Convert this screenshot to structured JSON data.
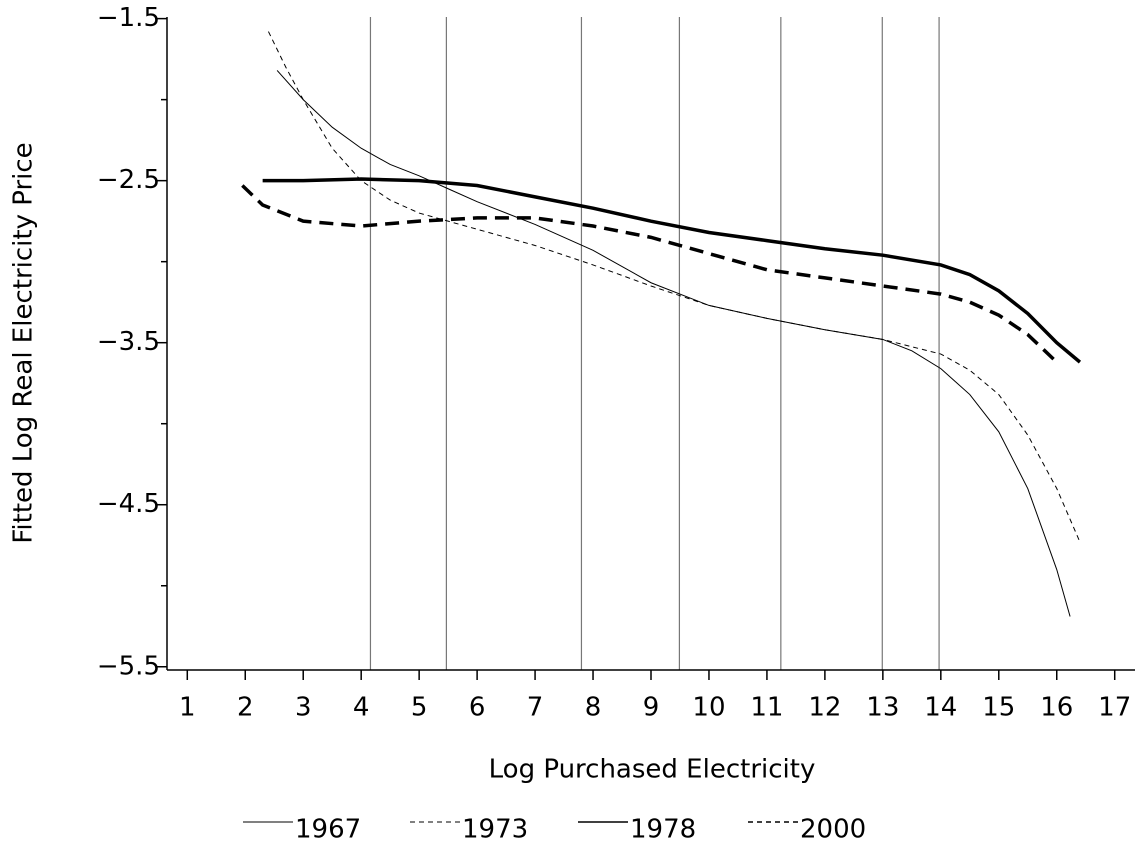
{
  "chart_data": {
    "type": "line",
    "x_label": "Log Purchased Electricity",
    "y_label": "Fitted Log Real Electricity Price",
    "xlim": [
      0.65,
      17.35
    ],
    "ylim": [
      -5.52,
      -1.49
    ],
    "xticks": [
      1,
      2,
      3,
      4,
      5,
      6,
      7,
      8,
      9,
      10,
      11,
      12,
      13,
      14,
      15,
      16,
      17
    ],
    "yticks": [
      {
        "value": -1.5,
        "label": "−1.5"
      },
      {
        "value": -2.5,
        "label": "−2.5"
      },
      {
        "value": -3.5,
        "label": "−3.5"
      },
      {
        "value": -4.5,
        "label": "−4.5"
      },
      {
        "value": -5.5,
        "label": "−5.5"
      }
    ],
    "yminor_ticks": [
      -2,
      -3,
      -4,
      -5
    ],
    "vlines": [
      4.16,
      5.47,
      7.8,
      9.49,
      11.24,
      12.99,
      13.97
    ],
    "color": "#000000",
    "series": [
      {
        "name": "1967",
        "width": 1,
        "dash": "none",
        "x": [
          2.55,
          3,
          3.5,
          4,
          4.5,
          5,
          5.5,
          6,
          7,
          8,
          9,
          10,
          11,
          12,
          13,
          13.5,
          14,
          14.5,
          15,
          15.5,
          16,
          16.23
        ],
        "values": [
          -1.82,
          -2.0,
          -2.17,
          -2.3,
          -2.4,
          -2.47,
          -2.55,
          -2.63,
          -2.77,
          -2.93,
          -3.13,
          -3.27,
          -3.35,
          -3.42,
          -3.48,
          -3.55,
          -3.66,
          -3.82,
          -4.05,
          -4.4,
          -4.9,
          -5.19
        ]
      },
      {
        "name": "1973",
        "width": 1,
        "dash": "5 4",
        "x": [
          2.4,
          2.7,
          3,
          3.5,
          4,
          4.5,
          5,
          6,
          7,
          8,
          9,
          10,
          11,
          12,
          13,
          14,
          14.5,
          15,
          15.5,
          16,
          16.4
        ],
        "values": [
          -1.58,
          -1.8,
          -2.0,
          -2.3,
          -2.5,
          -2.62,
          -2.7,
          -2.8,
          -2.9,
          -3.02,
          -3.15,
          -3.27,
          -3.35,
          -3.42,
          -3.48,
          -3.57,
          -3.67,
          -3.82,
          -4.07,
          -4.4,
          -4.73
        ]
      },
      {
        "name": "1978",
        "width": 3.5,
        "dash": "none",
        "x": [
          2.3,
          3,
          4,
          5,
          6,
          7,
          8,
          9,
          10,
          11,
          12,
          13,
          14,
          14.5,
          15,
          15.5,
          16,
          16.4
        ],
        "values": [
          -2.5,
          -2.5,
          -2.49,
          -2.5,
          -2.53,
          -2.6,
          -2.67,
          -2.75,
          -2.82,
          -2.87,
          -2.92,
          -2.96,
          -3.02,
          -3.08,
          -3.18,
          -3.32,
          -3.5,
          -3.62
        ]
      },
      {
        "name": "2000",
        "width": 3.5,
        "dash": "14 8",
        "x": [
          1.95,
          2.3,
          3,
          4,
          5,
          6,
          7,
          8,
          9,
          10,
          11,
          12,
          13,
          14,
          14.5,
          15,
          15.5,
          16
        ],
        "values": [
          -2.53,
          -2.65,
          -2.75,
          -2.78,
          -2.75,
          -2.73,
          -2.73,
          -2.78,
          -2.85,
          -2.95,
          -3.05,
          -3.1,
          -3.15,
          -3.2,
          -3.25,
          -3.33,
          -3.45,
          -3.62
        ]
      }
    ]
  }
}
